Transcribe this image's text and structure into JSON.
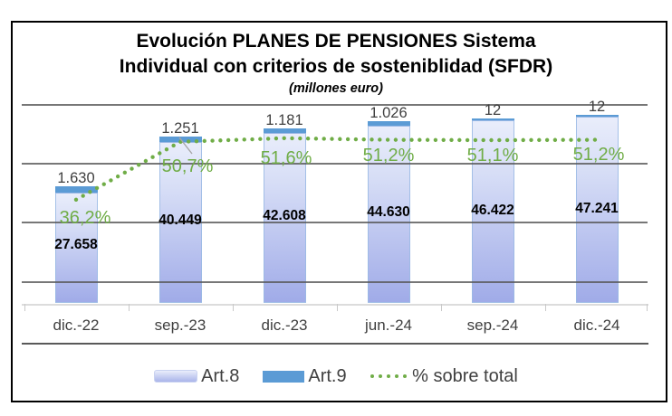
{
  "title": {
    "line1": "Evolución PLANES DE PENSIONES Sistema",
    "line2": "Individual con criterios de sosteniblidad (SFDR)",
    "subtitle": "(millones euro)"
  },
  "chart_data": {
    "type": "combo-stacked-bar-line",
    "title": "Evolución PLANES DE PENSIONES Sistema Individual con criterios de sosteniblidad (SFDR)",
    "subtitle": "(millones euro)",
    "categories": [
      "dic.-22",
      "sep.-23",
      "dic.-23",
      "jun.-24",
      "sep.-24",
      "dic.-24"
    ],
    "series": [
      {
        "name": "Art.8",
        "type": "bar",
        "stack": "base",
        "values": [
          27658,
          40449,
          42608,
          44630,
          46422,
          47241
        ],
        "labels": [
          "27.658",
          "40.449",
          "42.608",
          "44.630",
          "46.422",
          "47.241"
        ]
      },
      {
        "name": "Art.9",
        "type": "bar",
        "stack": "top",
        "values": [
          1630,
          1251,
          1181,
          1026,
          12,
          12
        ],
        "labels": [
          "1.630",
          "1.251",
          "1.181",
          "1.026",
          "12",
          "12"
        ]
      },
      {
        "name": "% sobre total",
        "type": "line",
        "axis": "secondary",
        "values": [
          36.2,
          50.7,
          51.6,
          51.2,
          51.1,
          51.2
        ],
        "labels": [
          "36,2%",
          "50,7%",
          "51,6%",
          "51,2%",
          "51,1%",
          "51,2%"
        ]
      }
    ],
    "value_axis": {
      "visible": false,
      "min": 0,
      "max_estimate": 50000
    },
    "pct_axis": {
      "visible": false,
      "min": 0,
      "max_estimate": 60
    },
    "grid": true,
    "legend_position": "bottom"
  },
  "legend": {
    "items": [
      {
        "label": "Art.8",
        "swatch": "gradient-bar"
      },
      {
        "label": "Art.9",
        "swatch": "solid-bar"
      },
      {
        "label": "% sobre total",
        "swatch": "dotted-line"
      }
    ]
  },
  "colors": {
    "art8_top": "#e9edfb",
    "art8_bottom": "#a0abe8",
    "art8_border": "#9abae4",
    "art9": "#5b9bd5",
    "line_green": "#70ad47",
    "label_gray": "#3f3f3f",
    "value_black": "#000000",
    "gridline": "#555555",
    "axis_light": "#dcdcdc",
    "frame_border": "#000000"
  }
}
